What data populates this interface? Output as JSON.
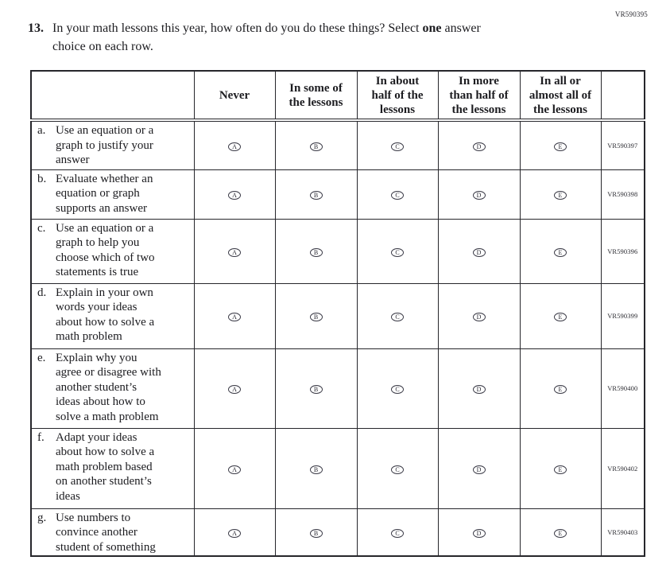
{
  "page_code": "VR590395",
  "stem": {
    "number": "13.",
    "line1_pre": "In your math lessons this year, how often do you do these things? Select",
    "line1_bold": "one",
    "line1_post": "answer",
    "line2": "choice on each row."
  },
  "table": {
    "columns": [
      "Never",
      "In some of\nthe lessons",
      "In about\nhalf of the\nlessons",
      "In more\nthan half of\nthe lessons",
      "In all or\nalmost all of\nthe lessons"
    ],
    "options": [
      "A",
      "B",
      "C",
      "D",
      "E"
    ],
    "rows": [
      {
        "letter": "a.",
        "text": "Use an equation or a\ngraph to justify your\nanswer",
        "code": "VR590397"
      },
      {
        "letter": "b.",
        "text": "Evaluate whether an\nequation or graph\nsupports an answer",
        "code": "VR590398"
      },
      {
        "letter": "c.",
        "text": "Use an equation or a\ngraph to help you\nchoose which of two\nstatements is true",
        "code": "VR590396"
      },
      {
        "letter": "d.",
        "text": "Explain in your own\nwords your ideas\nabout how to solve a\nmath problem",
        "code": "VR590399"
      },
      {
        "letter": "e.",
        "text": "Explain why you\nagree or disagree with\nanother student’s\nideas about how to\nsolve a math problem",
        "code": "VR590400"
      },
      {
        "letter": "f.",
        "text": "Adapt your ideas\nabout how to solve a\nmath problem based\non another student’s\nideas",
        "code": "VR590402"
      },
      {
        "letter": "g.",
        "text": "Use numbers to\nconvince another\nstudent of something",
        "code": "VR590403"
      }
    ]
  }
}
